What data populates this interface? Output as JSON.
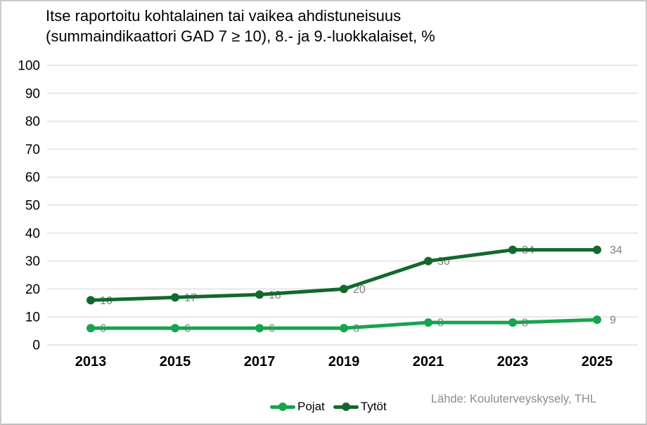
{
  "title": {
    "line1": "Itse raportoitu kohtalainen tai vaikea ahdistuneisuus",
    "line2": "(summaindikaattori GAD 7 ≥ 10), 8.- ja 9.-luokkalaiset, %"
  },
  "source": "Lähde: Kouluterveyskysely, THL",
  "colors": {
    "pojat_line": "#17a44f",
    "tytot_line": "#14682c",
    "data_label": "#808080",
    "gridline": "#e7e7e7",
    "axis_text": "#000000",
    "source_text": "#8c8c8c"
  },
  "chart_data": {
    "type": "line",
    "title": "Itse raportoitu kohtalainen tai vaikea ahdistuneisuus (summaindikaattori GAD 7 ≥ 10), 8.- ja 9.-luokkalaiset, %",
    "categories": [
      "2013",
      "2015",
      "2017",
      "2019",
      "2021",
      "2023",
      "2025"
    ],
    "series": [
      {
        "name": "Pojat",
        "color": "#17a44f",
        "values": [
          6,
          6,
          6,
          6,
          8,
          8,
          9
        ]
      },
      {
        "name": "Tytöt",
        "color": "#14682c",
        "values": [
          16,
          17,
          18,
          20,
          30,
          34,
          34
        ]
      }
    ],
    "xlabel": "",
    "ylabel": "",
    "ylim": [
      0,
      100
    ],
    "ytick_step": 10,
    "grid": true,
    "data_labels": true,
    "legend_position": "bottom",
    "source": "Lähde: Kouluterveyskysely, THL"
  }
}
